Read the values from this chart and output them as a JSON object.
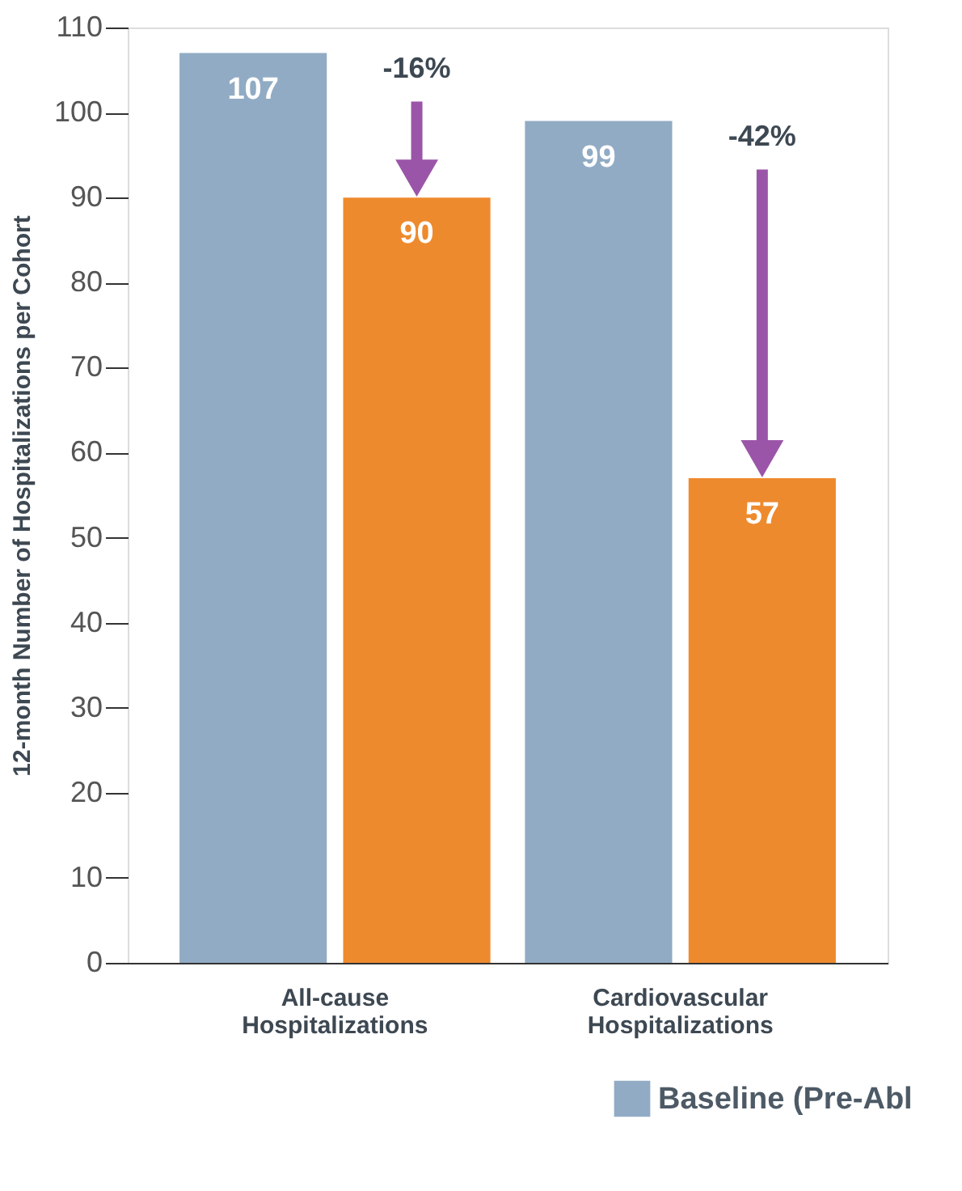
{
  "chart_data": {
    "type": "bar",
    "ylabel": "12-month Number of Hospitalizations per Cohort",
    "categories": [
      "All-cause Hospitalizations",
      "Cardiovascular Hospitalizations"
    ],
    "series": [
      {
        "name": "Baseline (Pre-Abl",
        "color": "#91abc4",
        "values": [
          107,
          99
        ]
      },
      {
        "color": "#ee8a2e",
        "values": [
          90,
          57
        ]
      }
    ],
    "ylim": [
      0,
      110
    ],
    "yticks": [
      0,
      10,
      20,
      30,
      40,
      50,
      60,
      70,
      80,
      90,
      100,
      110
    ],
    "data_labels": true,
    "grid": false,
    "legend": "bottom right",
    "annotations": [
      "-16%",
      "-42%"
    ]
  }
}
